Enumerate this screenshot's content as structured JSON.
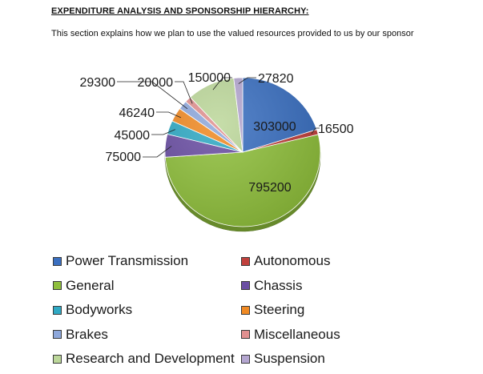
{
  "document": {
    "heading": "EXPENDITURE ANALYSIS AND SPONSORSHIP HIERARCHY:",
    "intro": "This section explains how we plan to use the valued resources provided to us by our sponsor"
  },
  "chart_data": {
    "type": "pie",
    "title": "",
    "slices": [
      {
        "label": "Power Transmission",
        "value": 303000,
        "value_label": "303000",
        "color": "#3a6fc0"
      },
      {
        "label": "Autonomous",
        "value": 16500,
        "value_label": "16500",
        "color": "#c0403c"
      },
      {
        "label": "General",
        "value": 795200,
        "value_label": "795200",
        "color": "#8fbf3c"
      },
      {
        "label": "Chassis",
        "value": 75000,
        "value_label": "75000",
        "color": "#6a4ea3"
      },
      {
        "label": "Bodyworks",
        "value": 45000,
        "value_label": "45000",
        "color": "#2fa9c4"
      },
      {
        "label": "Steering",
        "value": 46240,
        "value_label": "46240",
        "color": "#f08a24"
      },
      {
        "label": "Brakes",
        "value": 29300,
        "value_label": "29300",
        "color": "#8ea8dc"
      },
      {
        "label": "Miscellaneous",
        "value": 20000,
        "value_label": "20000",
        "color": "#e09090"
      },
      {
        "label": "Research and Development",
        "value": 150000,
        "value_label": "150000",
        "color": "#bcd79a"
      },
      {
        "label": "Suspension",
        "value": 27820,
        "value_label": "27820",
        "color": "#b4a6d0"
      }
    ],
    "legend": "bottom, two columns",
    "legend_order": [
      [
        "Power Transmission",
        "Autonomous"
      ],
      [
        "General",
        "Chassis"
      ],
      [
        "Bodyworks",
        "Steering"
      ],
      [
        "Brakes",
        "Miscellaneous"
      ],
      [
        "Research and Development",
        "Suspension"
      ]
    ]
  }
}
